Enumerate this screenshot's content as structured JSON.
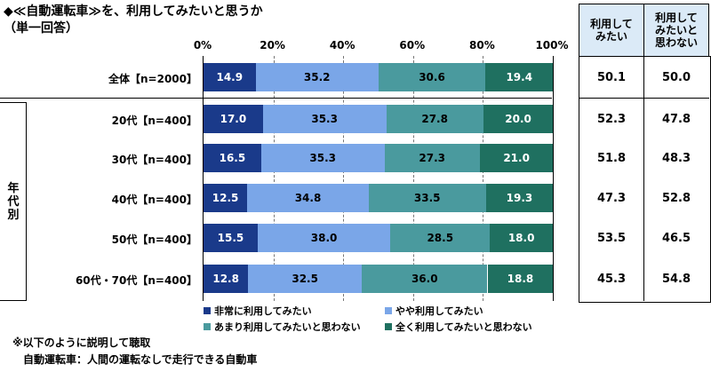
{
  "title": "◆≪自動運転車≫を、利用してみたいと思うか",
  "subtitle": "（単一回答）",
  "colors": {
    "very": "#1a3a8a",
    "somewhat": "#7aa6e8",
    "not_much": "#4a9a9e",
    "not_at_all": "#1f7060"
  },
  "side_headers": {
    "want": "利用して\nみたい",
    "not_want": "利用して\nみたいと\n思わない"
  },
  "group_label": "年代別",
  "legend": [
    {
      "label": "非常に利用してみたい",
      "color": "#1a3a8a"
    },
    {
      "label": "やや利用してみたい",
      "color": "#7aa6e8"
    },
    {
      "label": "あまり利用してみたいと思わない",
      "color": "#4a9a9e"
    },
    {
      "label": "全く利用してみたいと思わない",
      "color": "#1f7060"
    }
  ],
  "notes": [
    "※以下のように説明して聴取",
    "自動運転車：人間の運転なしで走行できる自動車"
  ],
  "chart_data": {
    "type": "bar",
    "orientation": "horizontal",
    "stacked": true,
    "xlim": [
      0,
      100
    ],
    "ticks": [
      "0%",
      "20%",
      "40%",
      "60%",
      "80%",
      "100%"
    ],
    "tick_values": [
      0,
      20,
      40,
      60,
      80,
      100
    ],
    "grid": true,
    "legend_position": "bottom",
    "categories": [
      "全体【n=2000】",
      "20代【n=400】",
      "30代【n=400】",
      "40代【n=400】",
      "50代【n=400】",
      "60代・70代【n=400】"
    ],
    "series": [
      {
        "name": "非常に利用してみたい",
        "values": [
          14.9,
          17.0,
          16.5,
          12.5,
          15.5,
          12.8
        ]
      },
      {
        "name": "やや利用してみたい",
        "values": [
          35.2,
          35.3,
          35.3,
          34.8,
          38.0,
          32.5
        ]
      },
      {
        "name": "あまり利用してみたいと思わない",
        "values": [
          30.6,
          27.8,
          27.3,
          33.5,
          28.5,
          36.0
        ]
      },
      {
        "name": "全く利用してみたいと思わない",
        "values": [
          19.4,
          20.0,
          21.0,
          19.3,
          18.0,
          18.8
        ]
      }
    ],
    "want_totals": [
      "50.1",
      "52.3",
      "51.8",
      "47.3",
      "53.5",
      "45.3"
    ],
    "not_want_totals": [
      "50.0",
      "47.8",
      "48.3",
      "52.8",
      "46.5",
      "54.8"
    ]
  }
}
